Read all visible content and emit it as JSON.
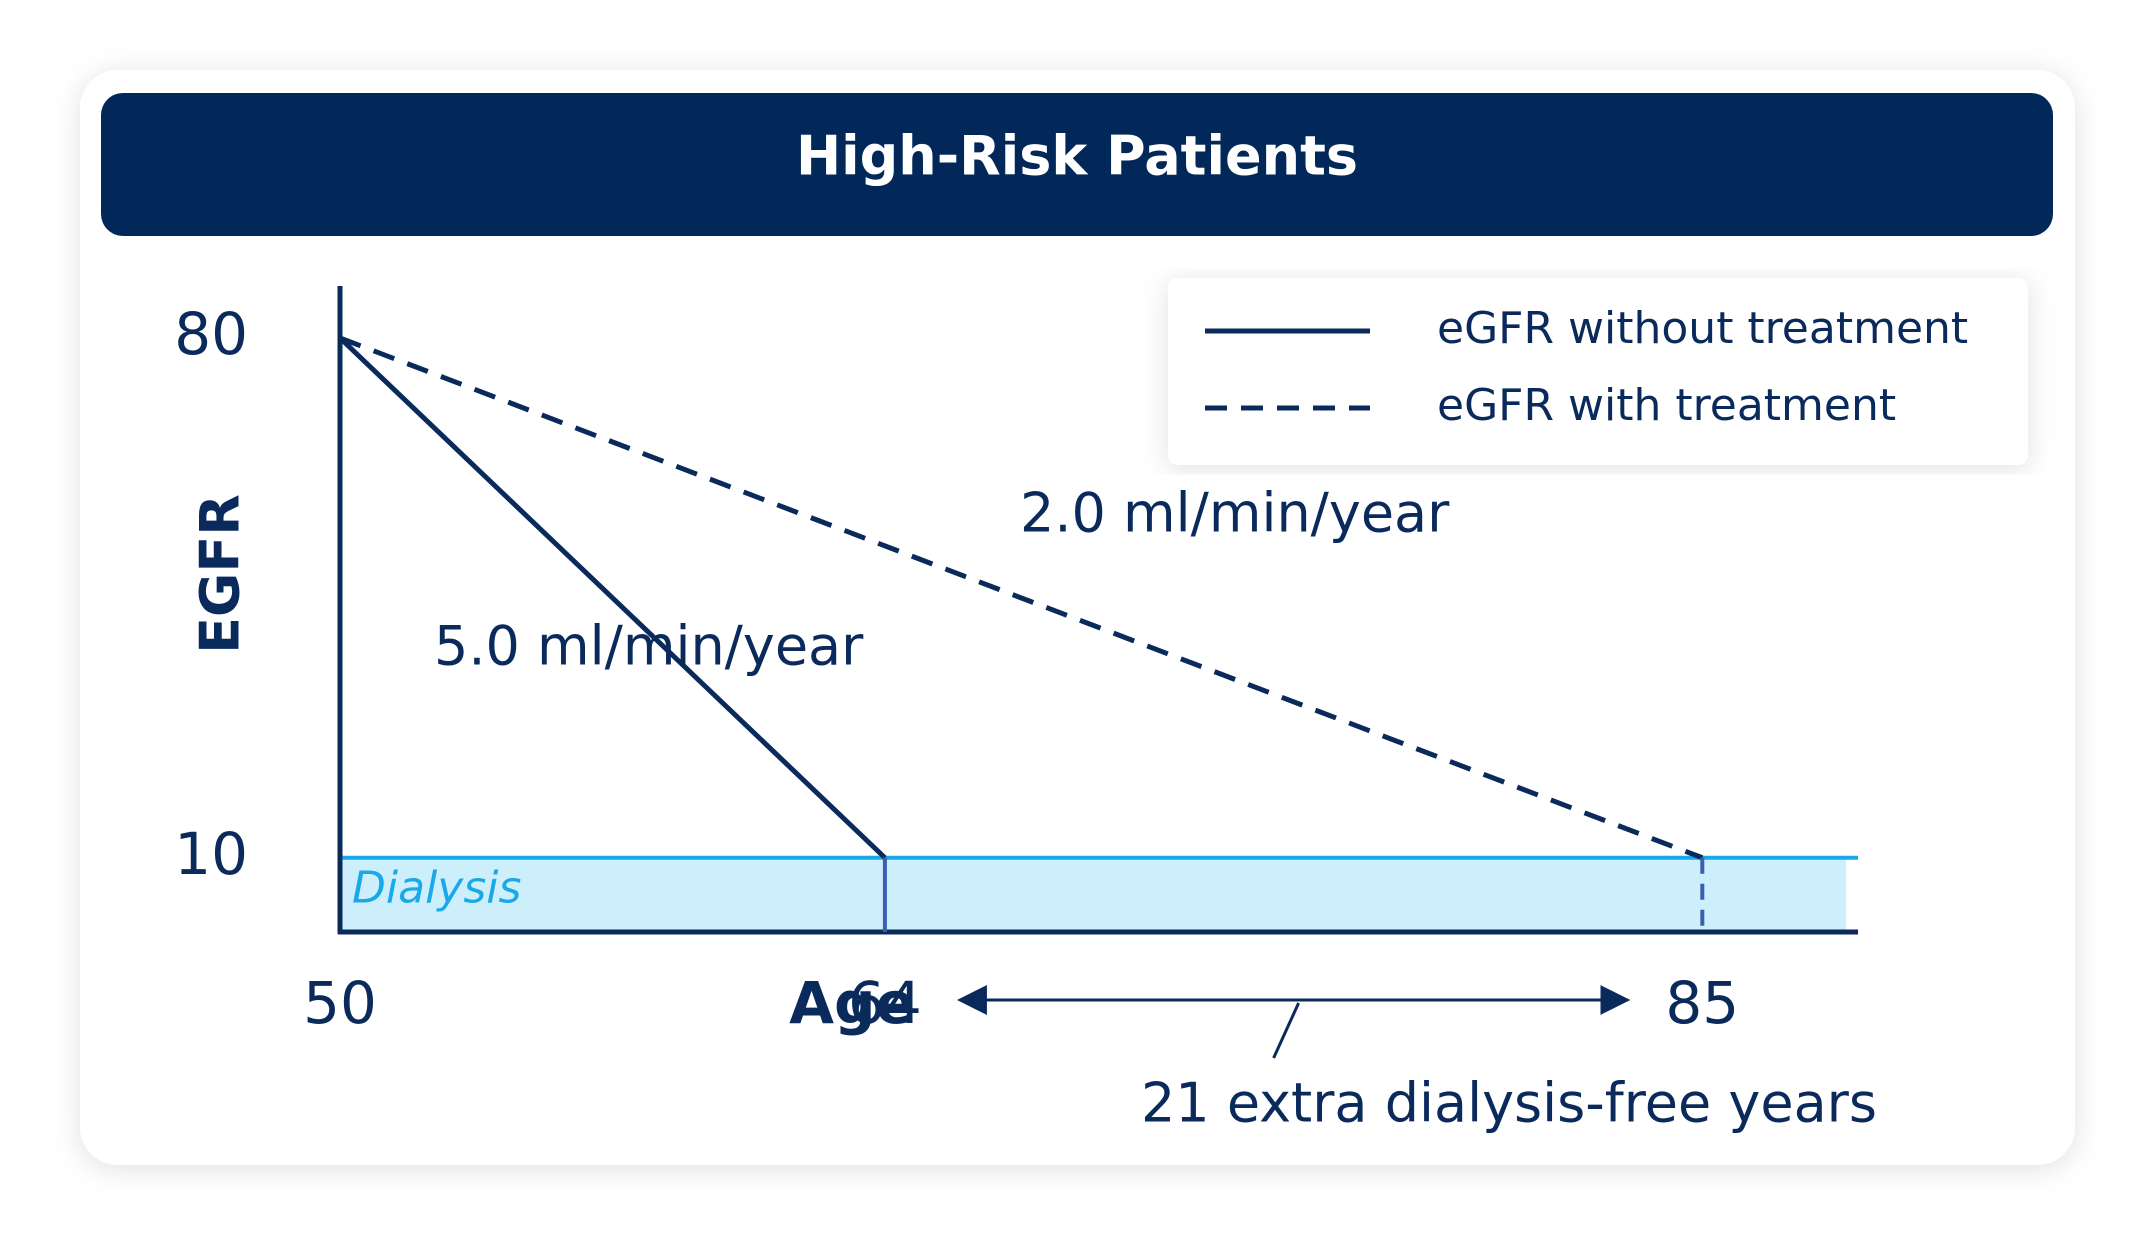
{
  "chart_data": {
    "type": "line",
    "title": "High-Risk Patients",
    "x_label": "Age",
    "y_label": "EGFR",
    "xlim": [
      50,
      89
    ],
    "xticks": [
      50,
      64,
      85
    ],
    "ylim": [
      0,
      87
    ],
    "yticks": [
      80,
      10
    ],
    "dialysis_threshold": 10,
    "dialysis_label": "Dialysis",
    "series": [
      {
        "name": "eGFR without treatment",
        "color": "#0b2a5c",
        "linestyle": "solid",
        "x": [
          50,
          64
        ],
        "values": [
          80,
          10
        ],
        "rate_label": "5.0 ml/min/year"
      },
      {
        "name": "eGFR with treatment",
        "color": "#0b2a5c",
        "linestyle": "dashed",
        "x": [
          50,
          85
        ],
        "values": [
          80,
          10
        ],
        "rate_label": "2.0 ml/min/year"
      }
    ],
    "annotation": "21 extra dialysis-free years",
    "legend": "upper right"
  }
}
